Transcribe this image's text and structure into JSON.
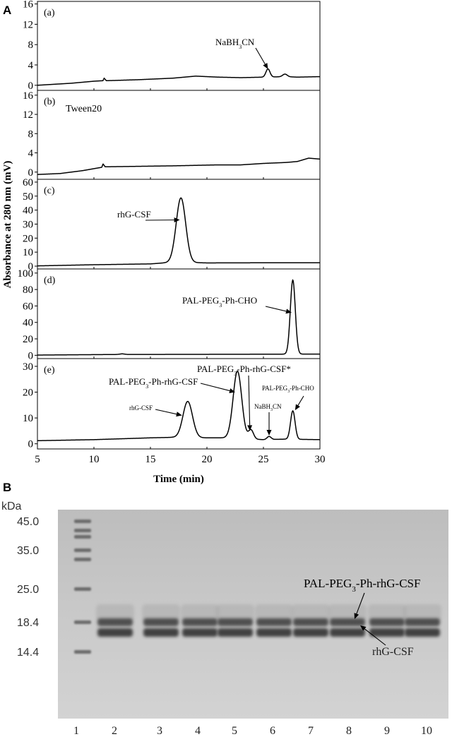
{
  "figure": {
    "panel_A_label": "A",
    "panel_B_label": "B"
  },
  "chart_data": [
    {
      "type": "line",
      "panel": "(a)",
      "label": "(a)",
      "xlabel": "Time (min)",
      "ylabel": "Absorbance at 280 nm (mV)",
      "xlim": [
        5,
        30
      ],
      "ylim": [
        -1,
        16.5
      ],
      "yticks": [
        0,
        4,
        8,
        12,
        16
      ],
      "baseline": [
        [
          5,
          0
        ],
        [
          8,
          0.4
        ],
        [
          10,
          0.8
        ],
        [
          10.8,
          0.9
        ],
        [
          10.9,
          1.4
        ],
        [
          11.1,
          0.9
        ],
        [
          14,
          1.1
        ],
        [
          17,
          1.4
        ],
        [
          19,
          1.8
        ],
        [
          21,
          1.6
        ],
        [
          23,
          1.5
        ],
        [
          25,
          1.6
        ],
        [
          27,
          1.7
        ],
        [
          28,
          1.6
        ],
        [
          30,
          1.7
        ]
      ],
      "peaks": [
        {
          "center": 25.4,
          "height": 1.6,
          "width": 0.18
        },
        {
          "center": 26.9,
          "height": 0.5,
          "width": 0.2
        }
      ],
      "annotations": [
        {
          "text_main": "NaBH",
          "text_sub": "3",
          "text_tail": "CN",
          "x": 25.4,
          "y": 3.2
        }
      ]
    },
    {
      "type": "line",
      "panel": "(b)",
      "label": "(b)",
      "annotation_text": "Tween20",
      "xlim": [
        5,
        30
      ],
      "ylim": [
        -1.5,
        17
      ],
      "yticks": [
        0,
        4,
        8,
        12,
        16
      ],
      "baseline": [
        [
          5,
          -0.5
        ],
        [
          7,
          -0.3
        ],
        [
          9,
          0.3
        ],
        [
          10.7,
          1.0
        ],
        [
          10.8,
          1.7
        ],
        [
          11.0,
          1.1
        ],
        [
          14,
          1.2
        ],
        [
          17,
          1.3
        ],
        [
          19,
          1.4
        ],
        [
          21,
          1.5
        ],
        [
          23,
          1.5
        ],
        [
          25,
          1.8
        ],
        [
          27,
          2.0
        ],
        [
          28,
          2.2
        ],
        [
          29,
          2.9
        ],
        [
          30,
          2.7
        ]
      ],
      "peaks": []
    },
    {
      "type": "line",
      "panel": "(c)",
      "label": "(c)",
      "xlim": [
        5,
        30
      ],
      "ylim": [
        -2,
        62
      ],
      "yticks": [
        0,
        10,
        20,
        30,
        40,
        50,
        60
      ],
      "baseline": [
        [
          5,
          0.2
        ],
        [
          10,
          1.0
        ],
        [
          15,
          1.6
        ],
        [
          17,
          2.8
        ],
        [
          18.5,
          2.6
        ],
        [
          20,
          2.3
        ],
        [
          25,
          2.4
        ],
        [
          30,
          2.4
        ]
      ],
      "peaks": [
        {
          "center": 17.7,
          "height": 46,
          "width": 0.42
        }
      ],
      "annotations": [
        {
          "text": "rhG-CSF",
          "x": 17.6,
          "y": 33
        }
      ]
    },
    {
      "type": "line",
      "panel": "(d)",
      "label": "(d)",
      "xlim": [
        5,
        30
      ],
      "ylim": [
        -4,
        105
      ],
      "yticks": [
        0,
        20,
        40,
        60,
        80,
        100
      ],
      "baseline": [
        [
          5,
          0.3
        ],
        [
          12,
          1.0
        ],
        [
          12.5,
          1.8
        ],
        [
          13,
          1.0
        ],
        [
          20,
          1.2
        ],
        [
          27,
          1.4
        ],
        [
          29,
          1.5
        ],
        [
          30,
          1.5
        ]
      ],
      "peaks": [
        {
          "center": 27.6,
          "height": 90,
          "width": 0.22
        }
      ],
      "annotations": [
        {
          "text_main": "PAL-PEG",
          "text_sub": "3",
          "text_tail": "-Ph-CHO",
          "x": 27.5,
          "y": 52
        }
      ]
    },
    {
      "type": "line",
      "panel": "(e)",
      "label": "(e)",
      "xlim": [
        5,
        30
      ],
      "ylim": [
        -2,
        33
      ],
      "yticks": [
        0,
        10,
        20,
        30
      ],
      "baseline": [
        [
          5,
          1.2
        ],
        [
          10,
          1.6
        ],
        [
          15,
          2.3
        ],
        [
          17,
          2.5
        ],
        [
          20,
          2.3
        ],
        [
          22,
          2.3
        ],
        [
          25,
          1.6
        ],
        [
          27,
          1.8
        ],
        [
          30,
          1.6
        ]
      ],
      "peaks": [
        {
          "center": 18.3,
          "height": 14,
          "width": 0.42
        },
        {
          "center": 22.7,
          "height": 26,
          "width": 0.38
        },
        {
          "center": 23.9,
          "height": 3.5,
          "width": 0.22
        },
        {
          "center": 25.5,
          "height": 1.2,
          "width": 0.18
        },
        {
          "center": 27.6,
          "height": 11,
          "width": 0.2
        }
      ],
      "annotations": [
        {
          "text_main": "PAL-PEG",
          "text_sub": "3",
          "text_tail": "-Ph-rhG-CSF*",
          "x": 23.8,
          "y": 5
        },
        {
          "text_main": "PAL-PEG",
          "text_sub": "3",
          "text_tail": "-Ph-rhG-CSF",
          "x": 22.5,
          "y": 20
        },
        {
          "text": "rhG-CSF",
          "x": 17.8,
          "y": 11
        },
        {
          "text_main": "NaBH",
          "text_sub": "3",
          "text_tail": "CN",
          "x": 25.5,
          "y": 3.2
        },
        {
          "text_main": "PAL-PEG",
          "text_sub": "3",
          "text_tail": "-Ph-CHO",
          "x": 27.8,
          "y": 13
        }
      ]
    }
  ],
  "axes": {
    "x_ticks": [
      5,
      10,
      15,
      20,
      25,
      30
    ],
    "x_title": "Time (min)",
    "y_title": "Absorbance at 280 nm (mV)"
  },
  "gel": {
    "unit_label": "kDa",
    "markers": [
      "45.0",
      "35.0",
      "25.0",
      "18.4",
      "14.4"
    ],
    "lanes": [
      "1",
      "2",
      "3",
      "4",
      "5",
      "6",
      "7",
      "8",
      "9",
      "10"
    ],
    "band_label_upper_main": "PAL-PEG",
    "band_label_upper_sub": "3",
    "band_label_upper_tail": "-Ph-rhG-CSF",
    "band_label_lower": "rhG-CSF",
    "background_color": "#c4c4c4",
    "band_color": "#2e2e2e"
  }
}
